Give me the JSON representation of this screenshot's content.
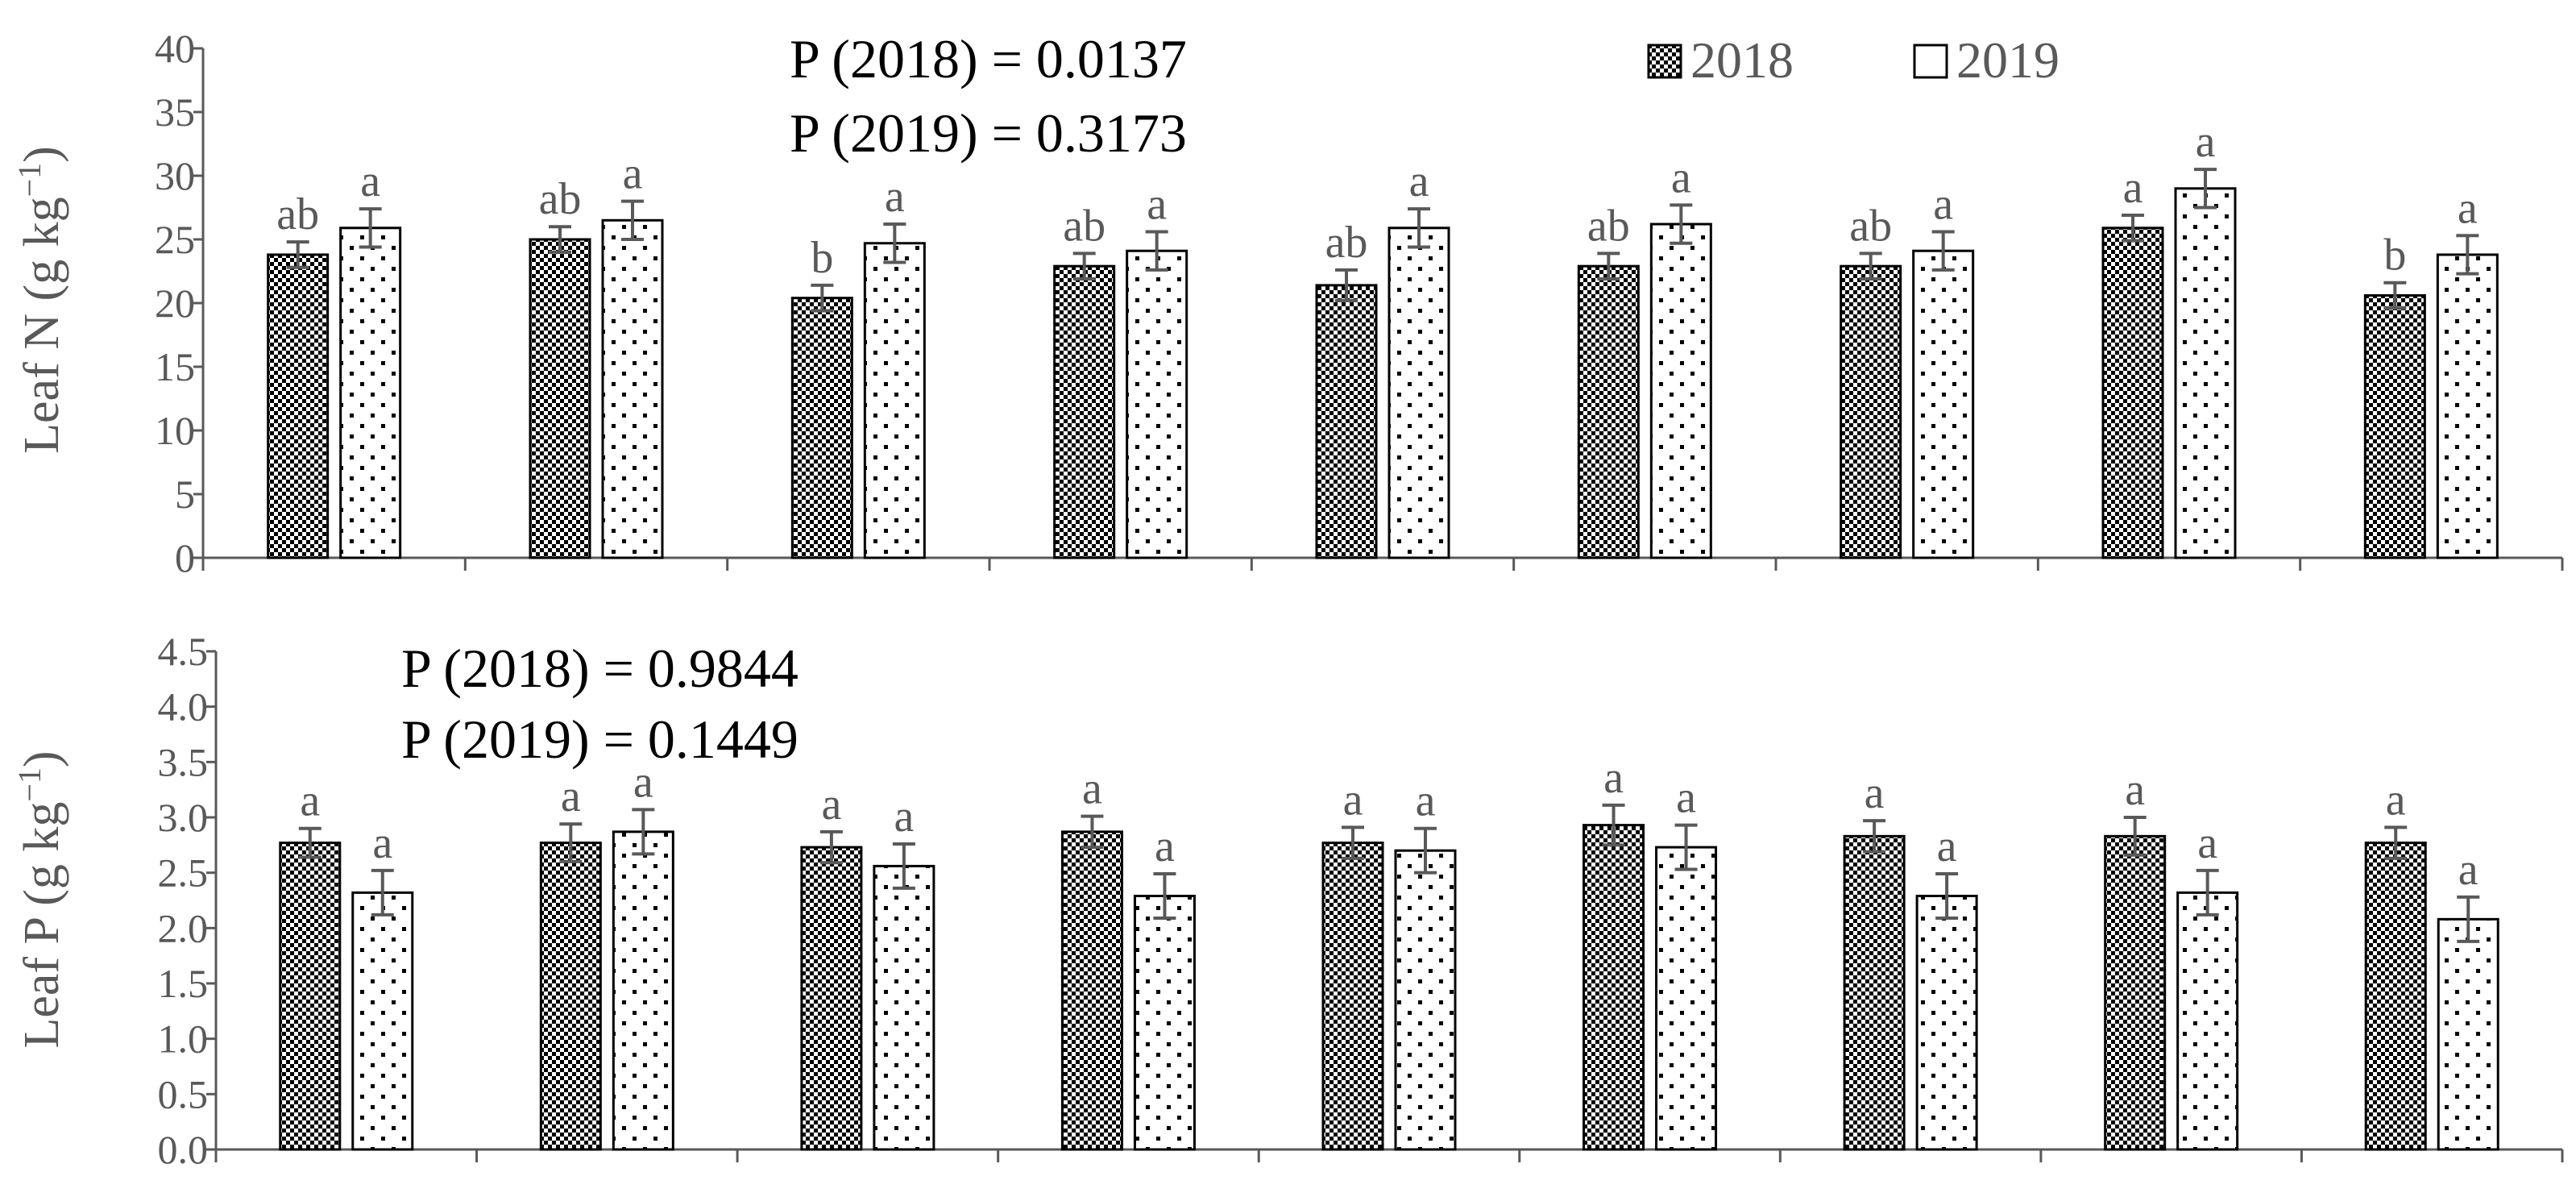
{
  "chart_data": [
    {
      "type": "bar",
      "panel": "top",
      "ylabel": "Leaf N (g kg",
      "ylabel_sup": "−1",
      "ylabel_close": ")",
      "ylim": [
        0,
        40
      ],
      "yticks": [
        "0",
        "5",
        "10",
        "15",
        "20",
        "25",
        "30",
        "35",
        "40"
      ],
      "ytick_values": [
        0,
        5,
        10,
        15,
        20,
        25,
        30,
        35,
        40
      ],
      "categories": [
        "",
        "",
        "",
        "",
        "",
        "",
        "",
        "",
        ""
      ],
      "series": [
        {
          "name": "2018",
          "values": [
            23.8,
            25.0,
            20.4,
            22.9,
            21.4,
            22.9,
            22.9,
            25.9,
            20.6
          ],
          "errors": [
            1.0,
            1.0,
            1.0,
            1.0,
            1.2,
            1.0,
            1.0,
            1.0,
            1.0
          ],
          "letters": [
            "ab",
            "ab",
            "b",
            "ab",
            "ab",
            "ab",
            "ab",
            "a",
            "b"
          ]
        },
        {
          "name": "2019",
          "values": [
            25.9,
            26.5,
            24.7,
            24.1,
            25.9,
            26.2,
            24.1,
            29.0,
            23.8
          ],
          "errors": [
            1.5,
            1.5,
            1.5,
            1.5,
            1.5,
            1.5,
            1.5,
            1.5,
            1.5
          ],
          "letters": [
            "a",
            "a",
            "a",
            "a",
            "a",
            "a",
            "a",
            "a",
            "a"
          ]
        }
      ],
      "p_values": [
        "P (2018) = 0.0137",
        "P (2019) = 0.3173"
      ]
    },
    {
      "type": "bar",
      "panel": "bottom",
      "ylabel": "Leaf P (g kg",
      "ylabel_sup": "−1",
      "ylabel_close": ")",
      "ylim": [
        0,
        4.5
      ],
      "yticks": [
        "0.0",
        "0.5",
        "1.0",
        "1.5",
        "2.0",
        "2.5",
        "3.0",
        "3.5",
        "4.0",
        "4.5"
      ],
      "ytick_values": [
        0,
        0.5,
        1.0,
        1.5,
        2.0,
        2.5,
        3.0,
        3.5,
        4.0,
        4.5
      ],
      "categories": [
        "",
        "",
        "",
        "",
        "",
        "",
        "",
        "",
        ""
      ],
      "series": [
        {
          "name": "2018",
          "values": [
            2.77,
            2.77,
            2.73,
            2.87,
            2.77,
            2.93,
            2.83,
            2.83,
            2.77
          ],
          "errors": [
            0.13,
            0.17,
            0.14,
            0.14,
            0.14,
            0.18,
            0.14,
            0.17,
            0.14
          ],
          "letters": [
            "a",
            "a",
            "a",
            "a",
            "a",
            "a",
            "a",
            "a",
            "a"
          ]
        },
        {
          "name": "2019",
          "values": [
            2.32,
            2.87,
            2.56,
            2.29,
            2.7,
            2.73,
            2.29,
            2.32,
            2.08
          ],
          "errors": [
            0.2,
            0.2,
            0.2,
            0.2,
            0.2,
            0.2,
            0.2,
            0.2,
            0.2
          ],
          "letters": [
            "a",
            "a",
            "a",
            "a",
            "a",
            "a",
            "a",
            "a",
            "a"
          ]
        }
      ],
      "p_values": [
        "P (2018) = 0.9844",
        "P (2019) = 0.1449"
      ]
    }
  ],
  "legend": [
    "2018",
    "2019"
  ],
  "colors": {
    "axis": "#595959",
    "bar_fill_2019": "#ffffff",
    "bar_edge": "#000000",
    "error_bar": "#595959"
  }
}
